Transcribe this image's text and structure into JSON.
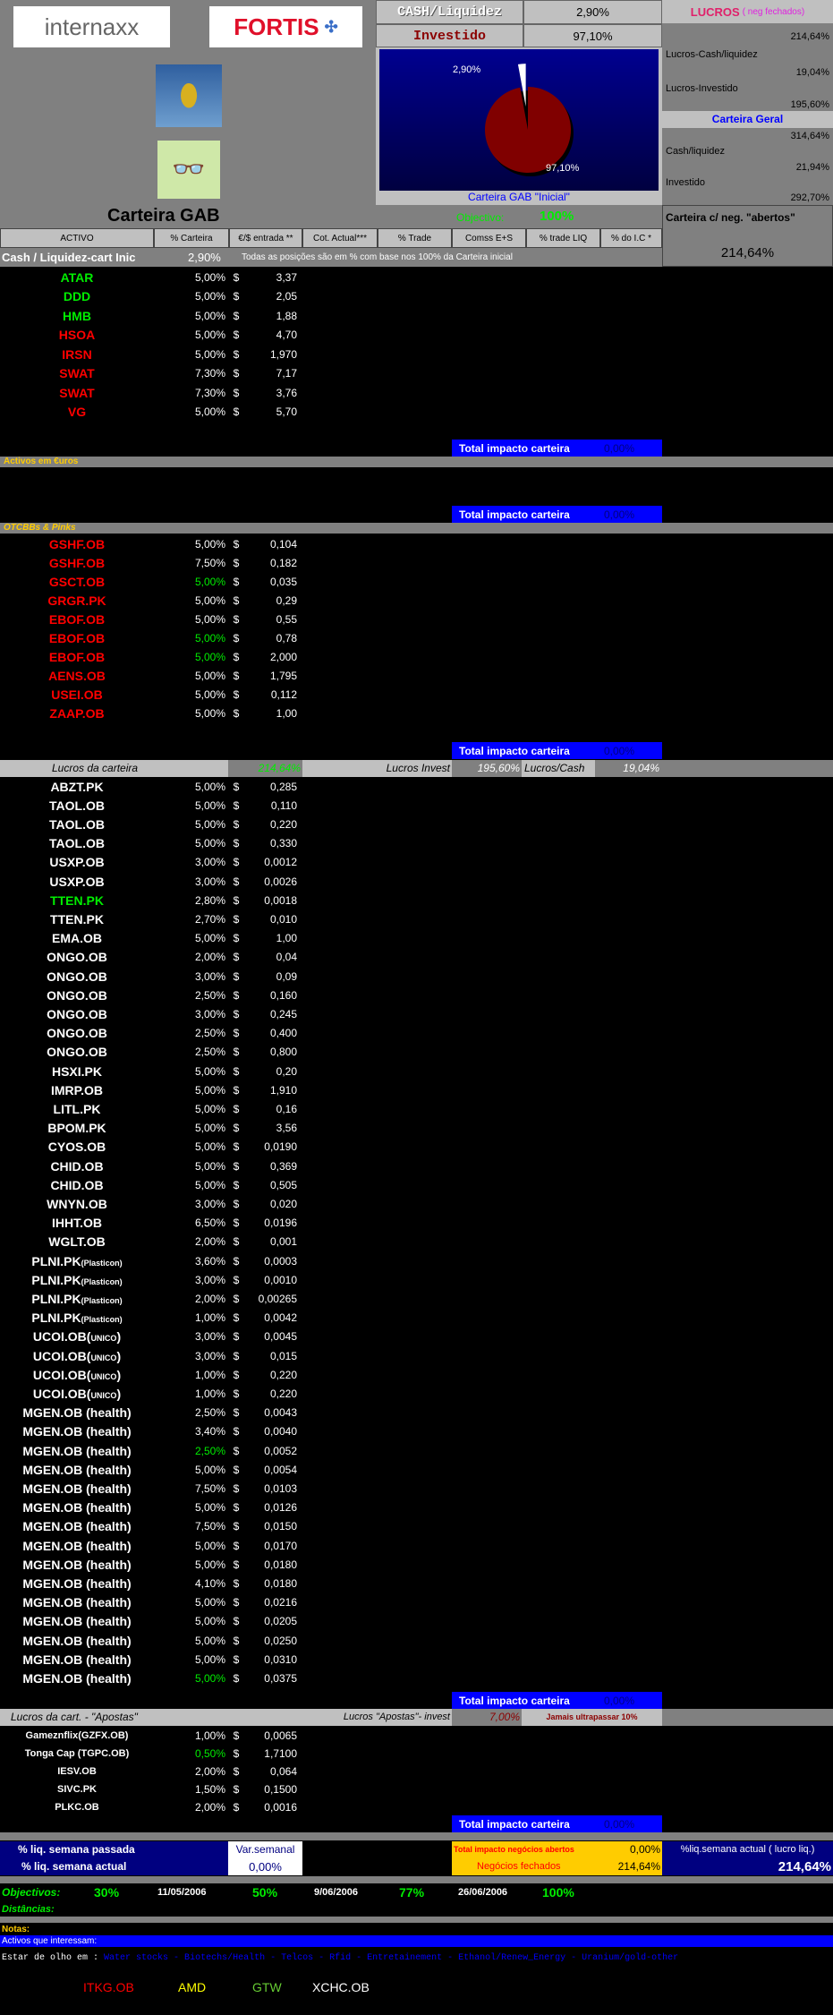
{
  "header": {
    "logo1": "internaxx",
    "logo2": "FORTIS",
    "cash_label": "CASH/Liquidez",
    "cash_value": "2,90%",
    "invest_label": "Investido",
    "invest_value": "97,10%",
    "chart_caption": "Carteira GAB \"Inicial\""
  },
  "chart_data": {
    "type": "pie",
    "values": [
      2.9,
      97.1
    ],
    "labels": [
      "2,90%",
      "97,10%"
    ],
    "colors": [
      "#ffffff",
      "#800000"
    ],
    "title": "Carteira GAB \"Inicial\""
  },
  "lucros": {
    "title": "LUCROS",
    "subtitle": "( neg fechados)",
    "total": "214,64%",
    "cash_label": "Lucros-Cash/liquidez",
    "cash_value": "19,04%",
    "invest_label": "Lucros-Investido",
    "invest_value": "195,60%"
  },
  "geral": {
    "title": "Carteira Geral",
    "total": "314,64%",
    "cash_label": "Cash/liquidez",
    "cash_value": "21,94%",
    "invest_label": "Investido",
    "invest_value": "292,70%"
  },
  "abertos": {
    "label": "Carteira c/ neg. \"abertos\"",
    "value": "214,64%"
  },
  "title": {
    "text": "Carteira GAB",
    "objectivo_label": "Objectivo:",
    "objectivo_value": "100%"
  },
  "columns": [
    "ACTIVO",
    "% Carteira",
    "€/$ entrada **",
    "Cot. Actual***",
    "% Trade",
    "Comss E+S",
    "% trade LIQ",
    "% do I.C *"
  ],
  "cash_row": {
    "label": "Cash / Liquidez-cart Inic",
    "value": "2,90%",
    "note": "Todas as posições são em % com base nos 100% da Carteira inicial"
  },
  "total_label": "Total impacto carteira",
  "total_value": "0,00%",
  "sections": {
    "euros": "Activos em €uros",
    "otc": "OTCBBs & Pinks"
  },
  "colors": {
    "green": "#00ee00",
    "red": "#ff0000",
    "white": "#ffffff"
  },
  "rows1": [
    {
      "t": "ATAR",
      "c": "green",
      "p": "5,00%",
      "cu": "$",
      "v": "3,37"
    },
    {
      "t": "DDD",
      "c": "green",
      "p": "5,00%",
      "cu": "$",
      "v": "2,05"
    },
    {
      "t": "HMB",
      "c": "green",
      "p": "5,00%",
      "cu": "$",
      "v": "1,88"
    },
    {
      "t": "HSOA",
      "c": "red",
      "p": "5,00%",
      "cu": "$",
      "v": "4,70"
    },
    {
      "t": "IRSN",
      "c": "red",
      "p": "5,00%",
      "cu": "$",
      "v": "1,970"
    },
    {
      "t": "SWAT",
      "c": "red",
      "p": "7,30%",
      "cu": "$",
      "v": "7,17"
    },
    {
      "t": "SWAT",
      "c": "red",
      "p": "7,30%",
      "cu": "$",
      "v": "3,76"
    },
    {
      "t": "VG",
      "c": "red",
      "p": "5,00%",
      "cu": "$",
      "v": "5,70"
    }
  ],
  "rows2": [
    {
      "t": "GSHF.OB",
      "c": "red",
      "p": "5,00%",
      "cu": "$",
      "v": "0,104"
    },
    {
      "t": "GSHF.OB",
      "c": "red",
      "p": "7,50%",
      "cu": "$",
      "v": "0,182"
    },
    {
      "t": "GSCT.OB",
      "c": "red",
      "p": "5,00%",
      "pc": "green",
      "cu": "$",
      "v": "0,035"
    },
    {
      "t": "GRGR.PK",
      "c": "red",
      "p": "5,00%",
      "cu": "$",
      "v": "0,29"
    },
    {
      "t": "EBOF.OB",
      "c": "red",
      "p": "5,00%",
      "cu": "$",
      "v": "0,55"
    },
    {
      "t": "EBOF.OB",
      "c": "red",
      "p": "5,00%",
      "pc": "green",
      "cu": "$",
      "v": "0,78"
    },
    {
      "t": "EBOF.OB",
      "c": "red",
      "p": "5,00%",
      "pc": "green",
      "cu": "$",
      "v": "2,000"
    },
    {
      "t": "AENS.OB",
      "c": "red",
      "p": "5,00%",
      "cu": "$",
      "v": "1,795"
    },
    {
      "t": "USEI.OB",
      "c": "red",
      "p": "5,00%",
      "cu": "$",
      "v": "0,112"
    },
    {
      "t": "ZAAP.OB",
      "c": "red",
      "p": "5,00%",
      "cu": "$",
      "v": "1,00"
    }
  ],
  "lucros_bar": {
    "label": "Lucros da carteira",
    "value": "214,64%",
    "invest_label": "Lucros Invest",
    "invest_value": "195,60%",
    "cash_label": "Lucros/Cash",
    "cash_value": "19,04%"
  },
  "rows3": [
    {
      "t": "ABZT.PK",
      "p": "5,00%",
      "cu": "$",
      "v": "0,285"
    },
    {
      "t": "TAOL.OB",
      "p": "5,00%",
      "cu": "$",
      "v": "0,110"
    },
    {
      "t": "TAOL.OB",
      "p": "5,00%",
      "cu": "$",
      "v": "0,220"
    },
    {
      "t": "TAOL.OB",
      "p": "5,00%",
      "cu": "$",
      "v": "0,330"
    },
    {
      "t": "USXP.OB",
      "p": "3,00%",
      "cu": "$",
      "v": "0,0012"
    },
    {
      "t": "USXP.OB",
      "p": "3,00%",
      "cu": "$",
      "v": "0,0026"
    },
    {
      "t": "TTEN.PK",
      "c": "green",
      "p": "2,80%",
      "cu": "$",
      "v": "0,0018"
    },
    {
      "t": "TTEN.PK",
      "p": "2,70%",
      "cu": "$",
      "v": "0,010"
    },
    {
      "t": "EMA.OB",
      "p": "5,00%",
      "cu": "$",
      "v": "1,00"
    },
    {
      "t": "ONGO.OB",
      "p": "2,00%",
      "cu": "$",
      "v": "0,04"
    },
    {
      "t": "ONGO.OB",
      "p": "3,00%",
      "cu": "$",
      "v": "0,09"
    },
    {
      "t": "ONGO.OB",
      "p": "2,50%",
      "cu": "$",
      "v": "0,160"
    },
    {
      "t": "ONGO.OB",
      "p": "3,00%",
      "cu": "$",
      "v": "0,245"
    },
    {
      "t": "ONGO.OB",
      "p": "2,50%",
      "cu": "$",
      "v": "0,400"
    },
    {
      "t": "ONGO.OB",
      "p": "2,50%",
      "cu": "$",
      "v": "0,800"
    },
    {
      "t": "HSXI.PK",
      "p": "5,00%",
      "cu": "$",
      "v": "0,20"
    },
    {
      "t": "IMRP.OB",
      "p": "5,00%",
      "cu": "$",
      "v": "1,910"
    },
    {
      "t": "LITL.PK",
      "p": "5,00%",
      "cu": "$",
      "v": "0,16"
    },
    {
      "t": "BPOM.PK",
      "p": "5,00%",
      "cu": "$",
      "v": "3,56"
    },
    {
      "t": "CYOS.OB",
      "p": "5,00%",
      "cu": "$",
      "v": "0,0190"
    },
    {
      "t": "CHID.OB",
      "p": "5,00%",
      "cu": "$",
      "v": "0,369"
    },
    {
      "t": "CHID.OB",
      "p": "5,00%",
      "cu": "$",
      "v": "0,505"
    },
    {
      "t": "WNYN.OB",
      "p": "3,00%",
      "cu": "$",
      "v": "0,020"
    },
    {
      "t": "IHHT.OB",
      "p": "6,50%",
      "cu": "$",
      "v": "0,0196"
    },
    {
      "t": "WGLT.OB",
      "p": "2,00%",
      "cu": "$",
      "v": "0,001"
    },
    {
      "t": "PLNI.PK",
      "s": "(Plasticon)",
      "p": "3,60%",
      "cu": "$",
      "v": "0,0003"
    },
    {
      "t": "PLNI.PK",
      "s": "(Plasticon)",
      "p": "3,00%",
      "cu": "$",
      "v": "0,0010"
    },
    {
      "t": "PLNI.PK",
      "s": "(Plasticon)",
      "p": "2,00%",
      "cu": "$",
      "v": "0,00265"
    },
    {
      "t": "PLNI.PK",
      "s": "(Plasticon)",
      "p": "1,00%",
      "cu": "$",
      "v": "0,0042"
    },
    {
      "t": "UCOI.OB(",
      "s": "UNICO",
      "e": ")",
      "p": "3,00%",
      "cu": "$",
      "v": "0,0045"
    },
    {
      "t": "UCOI.OB(",
      "s": "UNICO",
      "e": ")",
      "p": "3,00%",
      "cu": "$",
      "v": "0,015"
    },
    {
      "t": "UCOI.OB(",
      "s": "UNICO",
      "e": ")",
      "p": "1,00%",
      "cu": "$",
      "v": "0,220"
    },
    {
      "t": "UCOI.OB(",
      "s": "UNICO",
      "e": ")",
      "p": "1,00%",
      "cu": "$",
      "v": "0,220"
    },
    {
      "t": "MGEN.OB  (health)",
      "p": "2,50%",
      "cu": "$",
      "v": "0,0043"
    },
    {
      "t": "MGEN.OB  (health)",
      "p": "3,40%",
      "cu": "$",
      "v": "0,0040"
    },
    {
      "t": "MGEN.OB  (health)",
      "p": "2,50%",
      "pc": "green",
      "cu": "$",
      "v": "0,0052"
    },
    {
      "t": "MGEN.OB  (health)",
      "p": "5,00%",
      "cu": "$",
      "v": "0,0054"
    },
    {
      "t": "MGEN.OB  (health)",
      "p": "7,50%",
      "cu": "$",
      "v": "0,0103"
    },
    {
      "t": "MGEN.OB  (health)",
      "p": "5,00%",
      "cu": "$",
      "v": "0,0126"
    },
    {
      "t": "MGEN.OB  (health)",
      "p": "7,50%",
      "cu": "$",
      "v": "0,0150"
    },
    {
      "t": "MGEN.OB  (health)",
      "p": "5,00%",
      "cu": "$",
      "v": "0,0170"
    },
    {
      "t": "MGEN.OB  (health)",
      "p": "5,00%",
      "cu": "$",
      "v": "0,0180"
    },
    {
      "t": "MGEN.OB  (health)",
      "p": "4,10%",
      "cu": "$",
      "v": "0,0180"
    },
    {
      "t": "MGEN.OB  (health)",
      "p": "5,00%",
      "cu": "$",
      "v": "0,0216"
    },
    {
      "t": "MGEN.OB  (health)",
      "p": "5,00%",
      "cu": "$",
      "v": "0,0205"
    },
    {
      "t": "MGEN.OB  (health)",
      "p": "5,00%",
      "cu": "$",
      "v": "0,0250"
    },
    {
      "t": "MGEN.OB  (health)",
      "p": "5,00%",
      "cu": "$",
      "v": "0,0310"
    },
    {
      "t": "MGEN.OB  (health)",
      "p": "5,00%",
      "pc": "green",
      "cu": "$",
      "v": "0,0375"
    }
  ],
  "apostas_bar": {
    "label": "Lucros da cart. - \"Apostas\"",
    "invest_label": "Lucros \"Apostas\"- invest",
    "value": "7,00%",
    "warning": "Jamais ultrapassar 10%"
  },
  "rows4": [
    {
      "t": "Gameznflix(GZFX.OB)",
      "p": "1,00%",
      "cu": "$",
      "v": "0,0065"
    },
    {
      "t": "Tonga Cap (TGPC.OB)",
      "p": "0,50%",
      "pc": "green",
      "cu": "$",
      "v": "1,7100"
    },
    {
      "t": "IESV.OB",
      "p": "2,00%",
      "cu": "$",
      "v": "0,064"
    },
    {
      "t": "SIVC.PK",
      "p": "1,50%",
      "cu": "$",
      "v": "0,1500"
    },
    {
      "t": "PLKC.OB",
      "p": "2,00%",
      "cu": "$",
      "v": "0,0016"
    }
  ],
  "liq": {
    "passada_label": "% liq. semana passada",
    "actual_label": "%  liq. semana actual",
    "var_label": "Var.semanal",
    "var_value": "0,00%",
    "abertos_label": "Total impacto negócios abertos",
    "abertos_value": "0,00%",
    "fechados_label": "Negócios fechados",
    "fechados_value": "214,64%",
    "actual_right_label": "%liq.semana actual ( lucro liq.)",
    "actual_right_value": "214,64%"
  },
  "objectivos": {
    "label": "Objectivos:",
    "items": [
      "30%",
      "11/05/2006",
      "50%",
      "9/06/2006",
      "77%",
      "26/06/2006",
      "100%"
    ],
    "distancias": "Distâncias:"
  },
  "notas": {
    "label": "Notas:",
    "interessam": "Activos que interessam:",
    "olho_label": "Estar de olho em :",
    "olho_list": "Water stocks - Biotechs/Health - Telcos - Rfid - Entretainement - Ethanol/Renew_Energy - Uranium/gold-other"
  },
  "watch": [
    {
      "t": "ITKG.OB",
      "c": "#ff0000"
    },
    {
      "t": "AMD",
      "c": "#ffff00"
    },
    {
      "t": "GTW",
      "c": "#66cc33"
    },
    {
      "t": "XCHC.OB",
      "c": "#ffffff"
    }
  ]
}
